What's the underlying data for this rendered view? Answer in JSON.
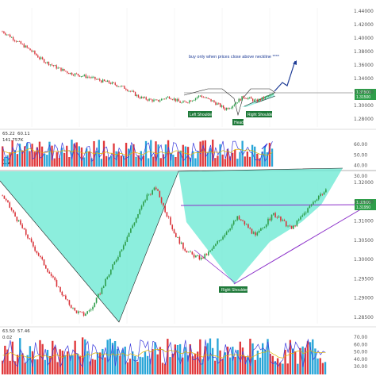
{
  "chart_data": [
    {
      "type": "candlestick",
      "panel": "top-price",
      "annotation": "buy only when prices close above neckline ****",
      "pattern_labels": [
        "Left Shoulder",
        "Head",
        "Right Shoulder"
      ],
      "price_tag": [
        "1.31900",
        "1.31500"
      ],
      "y_ticks": [
        "1.44000",
        "1.42000",
        "1.40000",
        "1.38000",
        "1.36000",
        "1.34000",
        "1.32000",
        "1.30000",
        "1.28000"
      ],
      "ylim": [
        1.27,
        1.45
      ],
      "close_path": [
        1.418,
        1.412,
        1.405,
        1.398,
        1.392,
        1.385,
        1.376,
        1.37,
        1.365,
        1.36,
        1.356,
        1.352,
        1.35,
        1.348,
        1.346,
        1.343,
        1.34,
        1.338,
        1.335,
        1.332,
        1.328,
        1.322,
        1.315,
        1.312,
        1.31,
        1.308,
        1.312,
        1.315,
        1.31,
        1.305,
        1.308,
        1.312,
        1.317,
        1.312,
        1.308,
        1.302,
        1.296,
        1.3,
        1.308,
        1.315,
        1.312,
        1.308,
        1.312,
        1.316,
        1.318
      ]
    },
    {
      "type": "bar+line",
      "panel": "top-volume",
      "header": [
        "65.22",
        "60.11",
        "141.757K"
      ],
      "y_ticks": [
        "60.00",
        "50.00",
        "40.00",
        "30.00"
      ]
    },
    {
      "type": "candlestick",
      "panel": "bottom-price",
      "pattern_labels": [
        "Right Shoulder"
      ],
      "price_tag": [
        "1.32000",
        "1.31950"
      ],
      "y_ticks": [
        "1.32000",
        "1.31500",
        "1.31000",
        "1.30500",
        "1.30000",
        "1.29500",
        "1.29000",
        "1.28500"
      ],
      "ylim": [
        1.284,
        1.3215
      ],
      "close_path": [
        1.318,
        1.314,
        1.31,
        1.306,
        1.302,
        1.298,
        1.294,
        1.29,
        1.287,
        1.286,
        1.288,
        1.293,
        1.298,
        1.303,
        1.308,
        1.313,
        1.318,
        1.32,
        1.314,
        1.308,
        1.304,
        1.302,
        1.301,
        1.303,
        1.306,
        1.309,
        1.312,
        1.31,
        1.307,
        1.31,
        1.313,
        1.311,
        1.309,
        1.312,
        1.315,
        1.318,
        1.3195
      ]
    },
    {
      "type": "bar+line",
      "panel": "bottom-volume",
      "header": [
        "63.50",
        "57.46",
        "0.02"
      ],
      "y_ticks": [
        "70.00",
        "60.00",
        "50.00",
        "40.00",
        "30.00"
      ]
    }
  ],
  "colors": {
    "bull": "#2e9e4a",
    "bear": "#d9343a",
    "fill": "#66e8d2",
    "neckline": "#8b2fc9",
    "annotation": "#1e3c96",
    "label_bg": "#1f7a3a",
    "vol_blue": "#2aa6d8",
    "vol_red": "#e0393c"
  }
}
